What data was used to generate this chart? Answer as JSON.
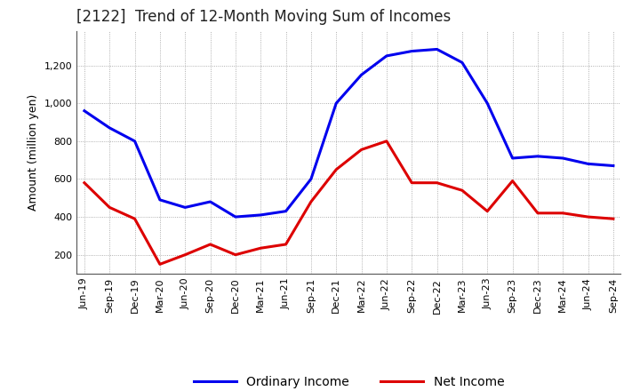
{
  "title": "[2122]  Trend of 12-Month Moving Sum of Incomes",
  "ylabel": "Amount (million yen)",
  "background_color": "#ffffff",
  "plot_bg_color": "#ffffff",
  "grid_color": "#999999",
  "ylim": [
    100,
    1380
  ],
  "yticks": [
    200,
    400,
    600,
    800,
    1000,
    1200
  ],
  "x_labels": [
    "Jun-19",
    "Sep-19",
    "Dec-19",
    "Mar-20",
    "Jun-20",
    "Sep-20",
    "Dec-20",
    "Mar-21",
    "Jun-21",
    "Sep-21",
    "Dec-21",
    "Mar-22",
    "Jun-22",
    "Sep-22",
    "Dec-22",
    "Mar-23",
    "Jun-23",
    "Sep-23",
    "Dec-23",
    "Mar-24",
    "Jun-24",
    "Sep-24"
  ],
  "ordinary_income": [
    960,
    870,
    800,
    490,
    450,
    480,
    400,
    410,
    430,
    600,
    1000,
    1150,
    1250,
    1275,
    1285,
    1215,
    1000,
    710,
    720,
    710,
    680,
    670
  ],
  "net_income": [
    580,
    450,
    390,
    150,
    200,
    255,
    200,
    235,
    255,
    480,
    650,
    755,
    800,
    580,
    580,
    540,
    430,
    590,
    420,
    420,
    400,
    390
  ],
  "ordinary_color": "#0000ee",
  "net_color": "#dd0000",
  "line_width": 2.2,
  "legend_ordinary": "Ordinary Income",
  "legend_net": "Net Income",
  "title_fontsize": 12,
  "tick_fontsize": 8,
  "ylabel_fontsize": 9
}
